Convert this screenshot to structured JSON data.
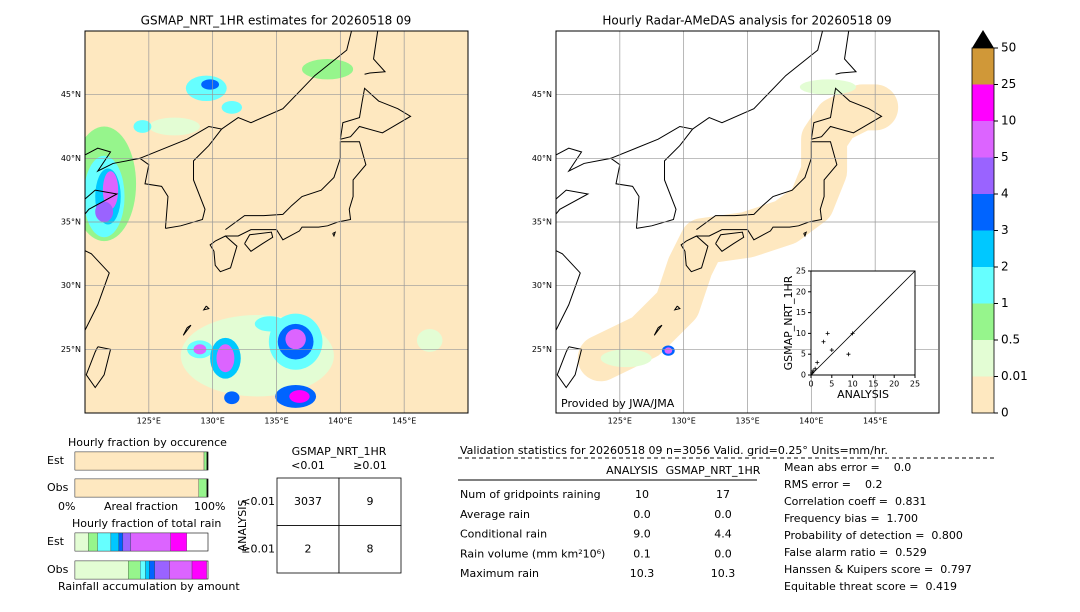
{
  "left_map": {
    "title": "GSMAP_NRT_1HR estimates for 20260518 09",
    "lon_lim": [
      120,
      150
    ],
    "lat_lim": [
      20,
      50
    ],
    "lat_ticks": [
      {
        "value": 45,
        "label": "45°N"
      },
      {
        "value": 40,
        "label": "40°N"
      },
      {
        "value": 35,
        "label": "35°N"
      },
      {
        "value": 30,
        "label": "30°N"
      },
      {
        "value": 25,
        "label": "25°N"
      }
    ],
    "lon_ticks": [
      {
        "value": 125,
        "label": "125°E"
      },
      {
        "value": 130,
        "label": "130°E"
      },
      {
        "value": 135,
        "label": "135°E"
      },
      {
        "value": 140,
        "label": "140°E"
      },
      {
        "value": 145,
        "label": "145°E"
      }
    ]
  },
  "right_map": {
    "title": "Hourly Radar-AMeDAS analysis for 20260518 09",
    "credit": "Provided by JWA/JMA",
    "lon_lim": [
      120,
      150
    ],
    "lat_lim": [
      20,
      50
    ],
    "lat_ticks": [
      {
        "value": 45,
        "label": "45°N"
      },
      {
        "value": 40,
        "label": "40°N"
      },
      {
        "value": 35,
        "label": "35°N"
      },
      {
        "value": 30,
        "label": "30°N"
      },
      {
        "value": 25,
        "label": "25°N"
      }
    ],
    "lon_ticks": [
      {
        "value": 125,
        "label": "125°E"
      },
      {
        "value": 130,
        "label": "130°E"
      },
      {
        "value": 135,
        "label": "135°E"
      },
      {
        "value": 140,
        "label": "140°E"
      },
      {
        "value": 145,
        "label": "145°E"
      }
    ]
  },
  "colorbar": {
    "levels": [
      0,
      0.01,
      0.5,
      1,
      2,
      3,
      4,
      5,
      10,
      25,
      50
    ],
    "colors": [
      "#fee8c0",
      "#e3fdd4",
      "#96f58c",
      "#66ffff",
      "#00c8ff",
      "#0064ff",
      "#9a63ff",
      "#dc64ff",
      "#ff00ff",
      "#d09838"
    ],
    "extend_color": "#000000"
  },
  "scatter": {
    "type": "scatter",
    "xlabel": "ANALYSIS",
    "ylabel": "GSMAP_NRT_1HR",
    "xlim": [
      0,
      25
    ],
    "ylim": [
      0,
      25
    ],
    "xticks": [
      0,
      5,
      10,
      15,
      20,
      25
    ],
    "yticks": [
      0,
      5,
      10,
      15,
      20,
      25
    ],
    "x": [
      0,
      0.3,
      0.5,
      1,
      1.5,
      3,
      4,
      5,
      9,
      10
    ],
    "y": [
      0,
      0.5,
      1,
      1.5,
      3,
      8,
      10,
      6,
      5,
      10
    ]
  },
  "occurrence": {
    "title": "Hourly fraction by occurence",
    "rows": [
      "Est",
      "Obs"
    ],
    "left": "0%",
    "middle": "Areal fraction",
    "right": "100%",
    "segments": [
      [
        97,
        2,
        1
      ],
      [
        93,
        6,
        1
      ]
    ],
    "colors": [
      "#fee8c0",
      "#96f58c",
      "#000000"
    ]
  },
  "total_rain": {
    "title": "Hourly fraction of total rain",
    "rows": [
      "Est",
      "Obs"
    ],
    "caption": "Rainfall accumulation by amount",
    "segments": [
      [
        10,
        7,
        10,
        6,
        3,
        6,
        30,
        12
      ],
      [
        40,
        9,
        4,
        3,
        4,
        11,
        17,
        11
      ]
    ]
  },
  "contingency": {
    "title": "GSMAP_NRT_1HR",
    "col_labels": [
      "<0.01",
      "≥0.01"
    ],
    "row_axis": "ANALYSIS",
    "row_labels": [
      "<0.01",
      "≥0.01"
    ],
    "cells": [
      [
        "3037",
        "9"
      ],
      [
        "2",
        "8"
      ]
    ]
  },
  "validation": {
    "header": "Validation statistics for 20260518 09  n=3056 Valid. grid=0.25° Units=mm/hr.",
    "columns": [
      "ANALYSIS",
      "GSMAP_NRT_1HR"
    ],
    "rows": [
      [
        "Num of gridpoints raining",
        "10",
        "17"
      ],
      [
        "Average rain",
        "0.0",
        "0.0"
      ],
      [
        "Conditional rain",
        "9.0",
        "4.4"
      ],
      [
        "Rain volume (mm km²10⁶)",
        "0.1",
        "0.0"
      ],
      [
        "Maximum rain",
        "10.3",
        "10.3"
      ]
    ],
    "scores": [
      "Mean abs error =    0.0",
      "RMS error =    0.2",
      "Correlation coeff =  0.831",
      "Frequency bias =  1.700",
      "Probability of detection =  0.800",
      "False alarm ratio =  0.529",
      "Hanssen & Kuipers score =  0.797",
      "Equitable threat score =  0.419"
    ]
  }
}
